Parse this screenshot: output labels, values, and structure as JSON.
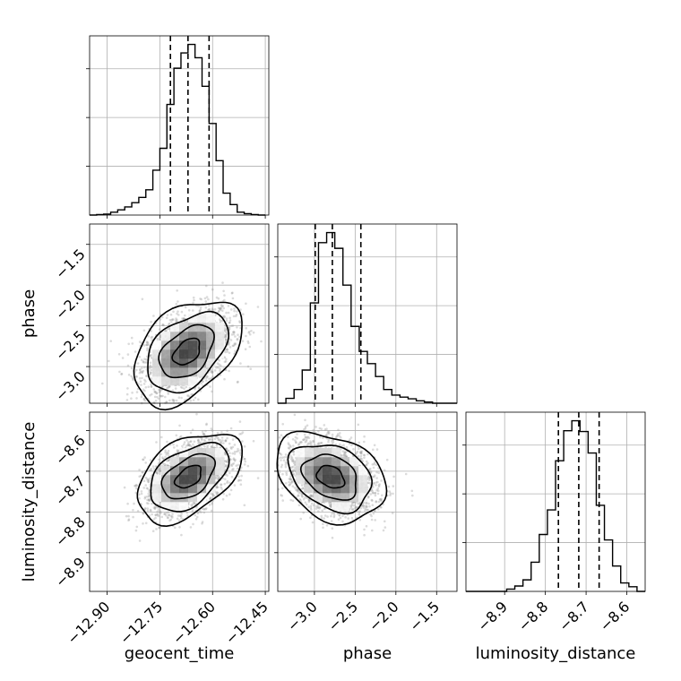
{
  "chart_data": {
    "type": "corner",
    "parameters": [
      "geocent_time",
      "phase",
      "luminosity_distance"
    ],
    "labels": {
      "geocent_time": "geocent_time",
      "phase": "phase",
      "luminosity_distance": "luminosity_distance"
    },
    "ranges": {
      "geocent_time": [
        -12.95,
        -12.44
      ],
      "phase": [
        -3.45,
        -1.25
      ],
      "luminosity_distance": [
        -8.995,
        -8.555
      ]
    },
    "ticks": {
      "geocent_time": [
        -12.9,
        -12.75,
        -12.6,
        -12.45
      ],
      "phase": [
        -3.0,
        -2.5,
        -2.0,
        -1.5
      ],
      "luminosity_distance": [
        -8.9,
        -8.8,
        -8.7,
        -8.6
      ]
    },
    "tick_labels": {
      "geocent_time": [
        "−12.90",
        "−12.75",
        "−12.60",
        "−12.45"
      ],
      "phase": [
        "−3.0",
        "−2.5",
        "−2.0",
        "−1.5"
      ],
      "luminosity_distance": [
        "−8.9",
        "−8.8",
        "−8.7",
        "−8.6"
      ]
    },
    "quantiles": {
      "geocent_time": [
        -12.72,
        -12.67,
        -12.61
      ],
      "phase": [
        -2.99,
        -2.78,
        -2.43
      ],
      "luminosity_distance": [
        -8.768,
        -8.718,
        -8.668
      ]
    },
    "histograms": {
      "geocent_time": {
        "edges": [
          -12.95,
          -12.93,
          -12.91,
          -12.89,
          -12.87,
          -12.85,
          -12.83,
          -12.81,
          -12.79,
          -12.77,
          -12.75,
          -12.73,
          -12.71,
          -12.69,
          -12.67,
          -12.65,
          -12.63,
          -12.61,
          -12.59,
          -12.57,
          -12.55,
          -12.53,
          -12.51,
          -12.49,
          -12.47,
          -12.45
        ],
        "counts": [
          0,
          1,
          2,
          6,
          11,
          17,
          26,
          37,
          53,
          94,
          140,
          232,
          308,
          340,
          358,
          330,
          270,
          192,
          114,
          46,
          22,
          6,
          3,
          1,
          0
        ]
      },
      "phase": {
        "edges": [
          -3.45,
          -3.35,
          -3.25,
          -3.15,
          -3.05,
          -2.95,
          -2.85,
          -2.75,
          -2.65,
          -2.55,
          -2.45,
          -2.35,
          -2.25,
          -2.15,
          -2.05,
          -1.95,
          -1.85,
          -1.75,
          -1.65,
          -1.55,
          -1.45,
          -1.35,
          -1.25
        ],
        "counts": [
          0,
          12,
          34,
          82,
          248,
          397,
          422,
          383,
          292,
          190,
          128,
          98,
          66,
          34,
          20,
          15,
          11,
          6,
          3,
          0,
          0,
          0
        ]
      },
      "luminosity_distance": {
        "edges": [
          -8.995,
          -8.975,
          -8.955,
          -8.935,
          -8.915,
          -8.895,
          -8.875,
          -8.855,
          -8.835,
          -8.815,
          -8.795,
          -8.775,
          -8.755,
          -8.735,
          -8.715,
          -8.695,
          -8.675,
          -8.655,
          -8.635,
          -8.615,
          -8.595,
          -8.575,
          -8.555
        ],
        "counts": [
          0,
          0,
          0,
          0,
          0,
          3,
          7,
          15,
          38,
          74,
          106,
          170,
          209,
          222,
          208,
          180,
          112,
          67,
          33,
          11,
          6,
          0
        ]
      }
    },
    "densities": {
      "phase_vs_geocent_time": {
        "x": "geocent_time",
        "y": "phase",
        "mean": [
          -12.673,
          -2.82
        ],
        "sd": [
          0.064,
          0.27
        ],
        "corr": 0.42
      },
      "luminosity_distance_vs_geocent_time": {
        "x": "geocent_time",
        "y": "luminosity_distance",
        "mean": [
          -12.668,
          -8.714
        ],
        "sd": [
          0.062,
          0.046
        ],
        "corr": 0.46
      },
      "luminosity_distance_vs_phase": {
        "x": "phase",
        "y": "luminosity_distance",
        "mean": [
          -2.8,
          -8.714
        ],
        "sd": [
          0.28,
          0.046
        ],
        "corr": -0.3
      }
    },
    "grid": true,
    "levels_sigma": [
      0.5,
      1.0,
      1.5,
      2.0
    ]
  }
}
